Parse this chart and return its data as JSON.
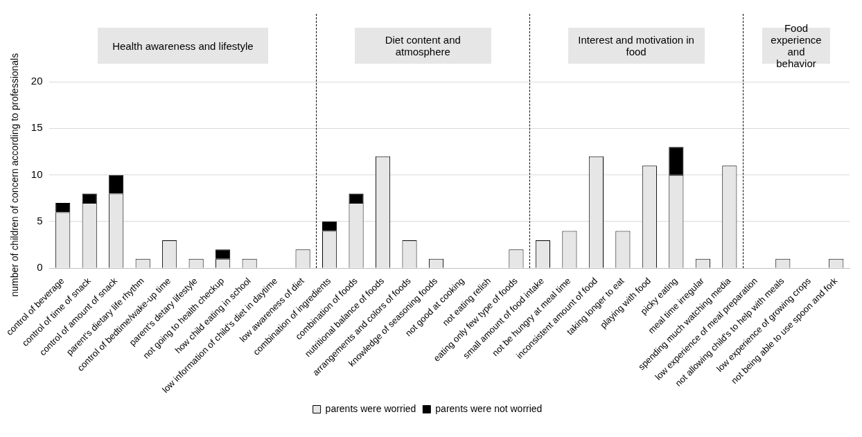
{
  "chart_data": {
    "type": "bar",
    "stacked": true,
    "ylabel": "number of children of concern according to professionals",
    "categories": [
      "control of beverage",
      "control of time of snack",
      "control of amount of snack",
      "parent's dietary life rhythm",
      "control of bedtime/wake-up time",
      "parent's detary lifestyle",
      "not going to health checkup",
      "how child eating in school",
      "low information of child's diet in daytime",
      "low awareness of diet",
      "combination of ingredients",
      "combination of foods",
      "nutritional balance of foods",
      "arrangements and colors of foods",
      "knowledge of seasoning foods",
      "not good at cooking",
      "not eating relish",
      "eating only few type of foods",
      "small amount of food intake",
      "not be hungry at meal time",
      "inconsistent amount of food",
      "taking longer to eat",
      "playing with food",
      "picky eating",
      "meal time irregular",
      "spending much watching media",
      "low experience of meal preparation",
      "not allowing child's to help with meals",
      "low experience of growing crops",
      "not being able to use spoon and fork"
    ],
    "series": [
      {
        "name": "parents were worried",
        "color": "#e6e6e6",
        "values": [
          6,
          7,
          8,
          1,
          3,
          1,
          1,
          1,
          0,
          2,
          4,
          7,
          12,
          3,
          1,
          0,
          0,
          2,
          3,
          4,
          12,
          4,
          11,
          10,
          1,
          11,
          0,
          1,
          0,
          1
        ]
      },
      {
        "name": "parents were not worried",
        "color": "#000000",
        "values": [
          1,
          1,
          2,
          0,
          0,
          0,
          1,
          0,
          0,
          0,
          1,
          1,
          0,
          0,
          0,
          0,
          0,
          0,
          0,
          0,
          0,
          0,
          0,
          3,
          0,
          0,
          0,
          0,
          0,
          0
        ]
      }
    ],
    "annotations": [
      "Health awareness and lifestyle",
      "Diet content and atmosphere",
      "Interest and motivation in food",
      "Food experience and behavior"
    ],
    "ylim": [
      0,
      20
    ],
    "yticks": [
      0,
      5,
      10,
      15,
      20
    ],
    "grid": "y",
    "legend": "bottom"
  }
}
